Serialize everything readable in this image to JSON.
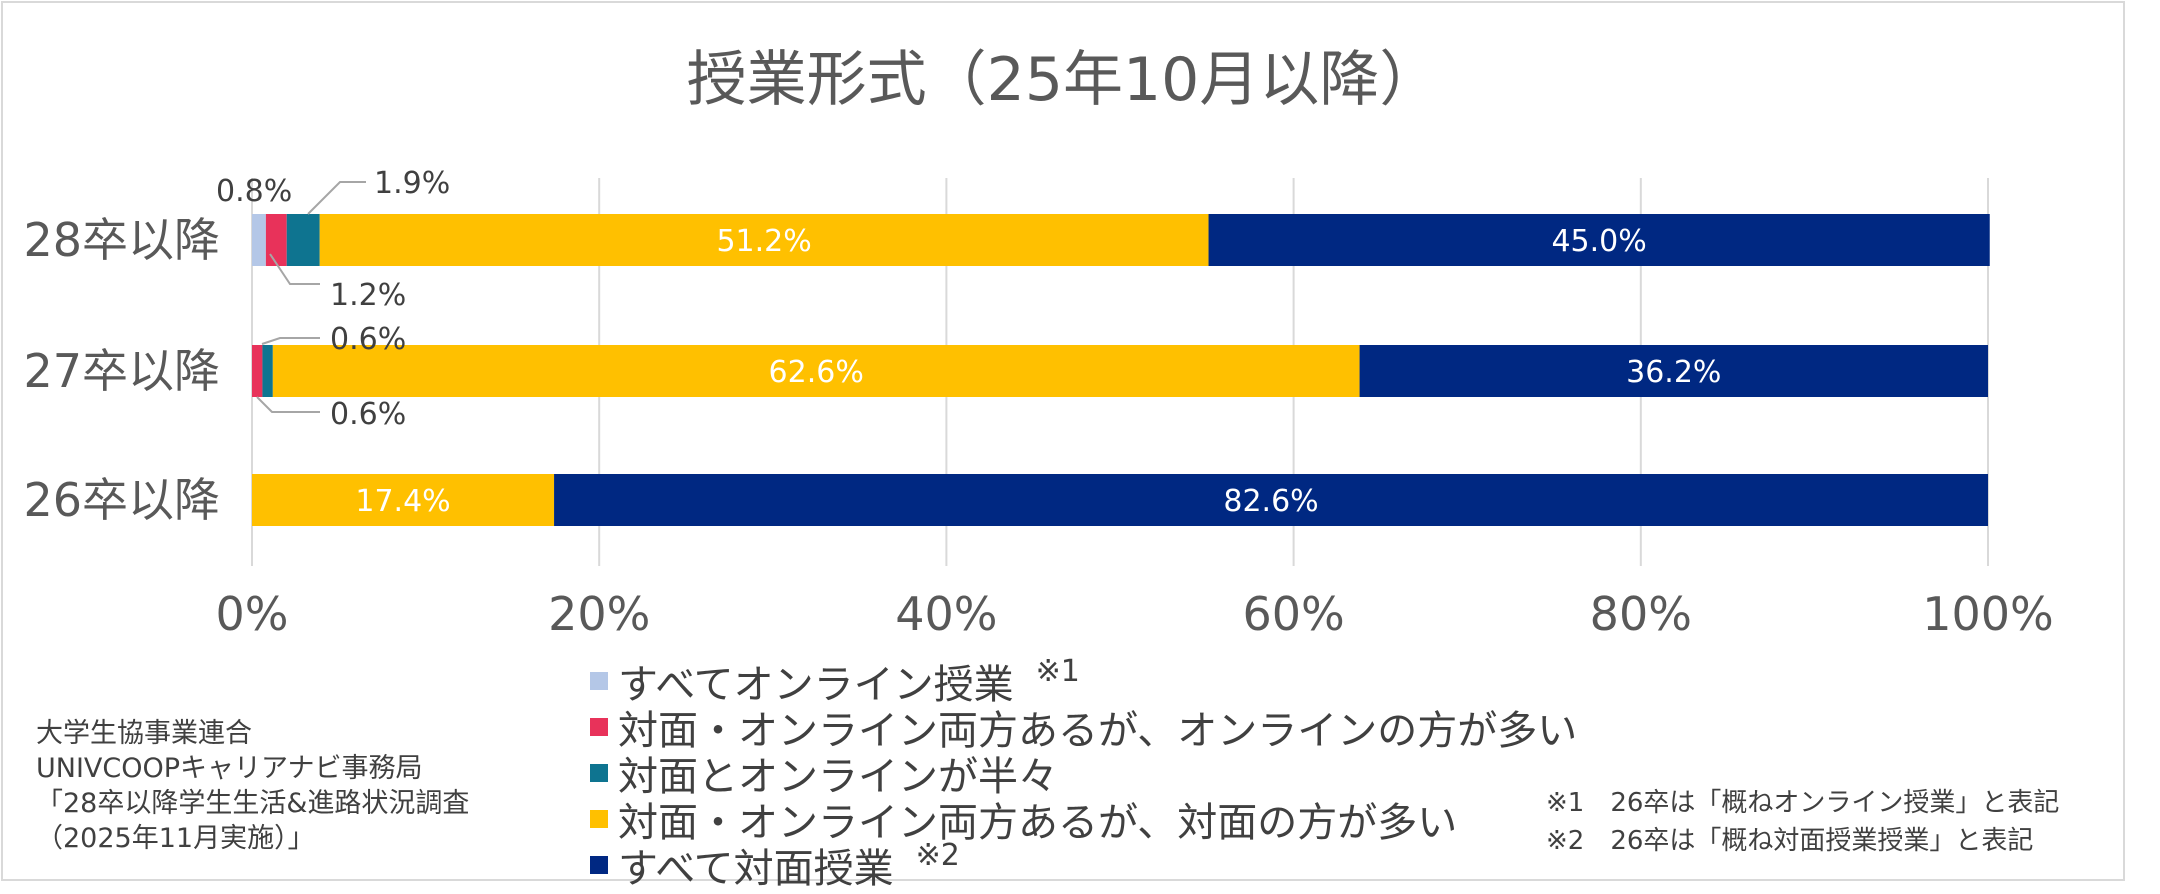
{
  "chart_data": {
    "type": "bar",
    "orientation": "horizontal",
    "stacked": "percent",
    "title": "授業形式（25年10月以降）",
    "categories": [
      "28卒以降",
      "27卒以降",
      "26卒以降"
    ],
    "x_ticks": [
      "0%",
      "20%",
      "40%",
      "60%",
      "80%",
      "100%"
    ],
    "xlim": [
      0,
      100
    ],
    "grid": true,
    "legend_position": "bottom",
    "series": [
      {
        "name": "すべてオンライン授業",
        "note": "※1",
        "color": "#b4c7e7",
        "values": [
          0.8,
          0,
          0
        ],
        "labels": [
          "0.8%",
          "",
          ""
        ]
      },
      {
        "name": "対面・オンライン両方あるが、オンラインの方が多い",
        "note": "",
        "color": "#e8325a",
        "values": [
          1.2,
          0.6,
          0
        ],
        "labels": [
          "1.2%",
          "0.6%",
          ""
        ]
      },
      {
        "name": "対面とオンラインが半々",
        "note": "",
        "color": "#0e7490",
        "values": [
          1.9,
          0.6,
          0
        ],
        "labels": [
          "1.9%",
          "0.6%",
          ""
        ]
      },
      {
        "name": "対面・オンライン両方あるが、対面の方が多い",
        "note": "",
        "color": "#ffc000",
        "values": [
          51.2,
          62.6,
          17.4
        ],
        "labels": [
          "51.2%",
          "62.6%",
          "17.4%"
        ]
      },
      {
        "name": "すべて対面授業",
        "note": "※2",
        "color": "#002882",
        "values": [
          45.0,
          36.2,
          82.6
        ],
        "labels": [
          "45.0%",
          "36.2%",
          "82.6%"
        ]
      }
    ]
  },
  "source": {
    "line1": "大学生協事業連合",
    "line2": "UNIVCOOPキャリアナビ事務局",
    "line3": "「28卒以降学生生活&進路状況調査",
    "line4": "（2025年11月実施）」"
  },
  "notes": {
    "note1": "※1　26卒は「概ねオンライン授業」と表記",
    "note2": "※2　26卒は「概ね対面授業授業」と表記"
  }
}
